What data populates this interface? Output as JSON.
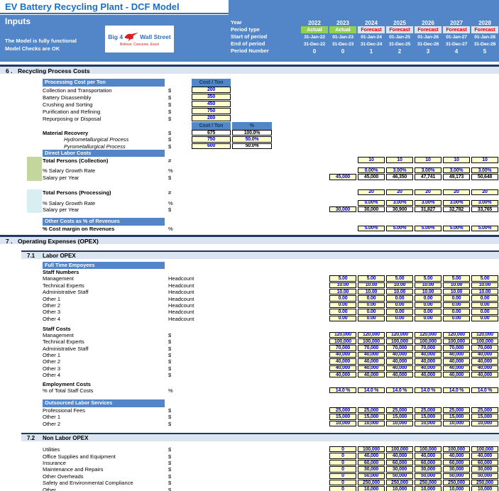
{
  "title": "EV Battery Recycling Plant - DCF Model",
  "sheet": "Inputs",
  "status_line1": "The Model is fully functional",
  "status_line2": "Model Checks are OK",
  "logo": {
    "left": "Big 4",
    "right": "Wall Street",
    "tagline": "Believe, Conceive, Excel"
  },
  "colors": {
    "accent_blue": "#5286c9",
    "section_band": "#dbe5f1",
    "navy_border": "#1f3864",
    "input_cell_bg": "#ffffcc",
    "input_cell_text": "#0000cc",
    "actual_green": "#92d050",
    "forecast_red": "#ee0000"
  },
  "period_header": {
    "labels": [
      "Year",
      "Period type",
      "Start of period",
      "End of period",
      "Period Number"
    ],
    "years": [
      "2022",
      "2023",
      "2024",
      "2025",
      "2026",
      "2027",
      "2028"
    ],
    "period_type": [
      "Actual",
      "Actual",
      "Forecast",
      "Forecast",
      "Forecast",
      "Forecast",
      "Forecast"
    ],
    "start_of_period": [
      "31-Jan-22",
      "01-Jan-23",
      "01-Jan-24",
      "01-Jan-25",
      "01-Jan-26",
      "01-Jan-27",
      "01-Jan-28"
    ],
    "end_of_period": [
      "31-Dec-22",
      "31-Dec-23",
      "31-Dec-24",
      "31-Dec-25",
      "31-Dec-26",
      "31-Dec-27",
      "31-Dec-28"
    ],
    "period_number": [
      "0",
      "0",
      "1",
      "2",
      "3",
      "4",
      "5"
    ]
  },
  "body": [
    {
      "t": "sec",
      "num": "6 .",
      "title": "Recycling Process Costs"
    },
    {
      "t": "gap",
      "h": 7
    },
    {
      "t": "bar",
      "h": 11,
      "label": "Processing Cost per Ton",
      "heads": [
        {
          "v": "Cost / Ton",
          "c": "A"
        }
      ]
    },
    {
      "t": "row",
      "h": 10,
      "label": "Collection and Transportation",
      "unit": "$",
      "cells": [
        {
          "v": "200",
          "y": 1,
          "c": "A"
        }
      ]
    },
    {
      "t": "row",
      "h": 10,
      "label": "Battery Disassembly",
      "unit": "$",
      "cells": [
        {
          "v": "350",
          "y": 1,
          "c": "A"
        }
      ]
    },
    {
      "t": "row",
      "h": 10,
      "label": "Crushing and Sorting",
      "unit": "$",
      "cells": [
        {
          "v": "450",
          "y": 1,
          "c": "A"
        }
      ]
    },
    {
      "t": "row",
      "h": 10,
      "label": "Purification and Refining",
      "unit": "$",
      "cells": [
        {
          "v": "750",
          "y": 1,
          "c": "A"
        }
      ]
    },
    {
      "t": "row",
      "h": 10,
      "label": "Repurposing or Disposal",
      "unit": "$",
      "cells": [
        {
          "v": "200",
          "y": 1,
          "c": "A"
        }
      ]
    },
    {
      "t": "bar",
      "h": 11,
      "heads": [
        {
          "v": "Cost / Ton",
          "c": "A"
        },
        {
          "v": "%",
          "c": "B"
        }
      ]
    },
    {
      "t": "row",
      "h": 9.3,
      "label": "Material Recovery",
      "b": 1,
      "unit": "$",
      "cells": [
        {
          "v": "675",
          "c": "A"
        },
        {
          "v": "100.0%",
          "c": "B"
        }
      ]
    },
    {
      "t": "row",
      "h": 9.3,
      "label": "Hydrometallurgical Process",
      "i": 1,
      "ind": 1,
      "unit": "$",
      "cells": [
        {
          "v": "750",
          "y": 1,
          "c": "A"
        },
        {
          "v": "50.0%",
          "y": 1,
          "c": "B"
        }
      ]
    },
    {
      "t": "row",
      "h": 9.3,
      "label": "Pyrometallurgical Process",
      "i": 1,
      "ind": 1,
      "unit": "$",
      "cells": [
        {
          "v": "600",
          "y": 1,
          "c": "A"
        },
        {
          "v": "50.0%",
          "c": "B"
        }
      ]
    },
    {
      "t": "bar",
      "h": 10.5,
      "label": "Direct Labor Costs"
    },
    {
      "t": "row",
      "h": 9.3,
      "label": "Total Persons (Collection)",
      "b": 1,
      "unit": "#",
      "sw": "g",
      "start": 2,
      "y": 1,
      "vals": [
        "10",
        "10",
        "10",
        "10",
        "10"
      ]
    },
    {
      "t": "gap",
      "h": 5.5,
      "sw": "g"
    },
    {
      "t": "row",
      "h": 9.3,
      "label": "% Salary Growth Rate",
      "unit": "%",
      "sw": "g",
      "start": 2,
      "y": 1,
      "vals": [
        "0.00%",
        "3.00%",
        "3.00%",
        "3.00%",
        "3.00%"
      ]
    },
    {
      "t": "row",
      "h": 9.3,
      "label": "Salary per Year",
      "unit": "$",
      "sw": "g",
      "cells": [
        {
          "v": "45,000",
          "y": 1,
          "col": 1
        },
        {
          "v": "45,000",
          "col": 2
        },
        {
          "v": "46,350",
          "col": 3
        },
        {
          "v": "47,741",
          "col": 4
        },
        {
          "v": "49,173",
          "col": 5
        },
        {
          "v": "50,648",
          "col": 6
        }
      ]
    },
    {
      "t": "gap",
      "h": 12
    },
    {
      "t": "row",
      "h": 9.3,
      "label": "Total Persons (Processing)",
      "b": 1,
      "unit": "#",
      "sw": "b",
      "start": 2,
      "y": 1,
      "vals": [
        "20",
        "20",
        "20",
        "20",
        "20"
      ]
    },
    {
      "t": "gap",
      "h": 5.5,
      "sw": "b"
    },
    {
      "t": "row",
      "h": 9.3,
      "label": "% Salary Growth Rate",
      "unit": "%",
      "sw": "b",
      "start": 2,
      "y": 1,
      "vals": [
        "0.00%",
        "3.00%",
        "3.00%",
        "3.00%",
        "3.00%"
      ]
    },
    {
      "t": "row",
      "h": 9.3,
      "label": "Salary per Year",
      "unit": "$",
      "sw": "b",
      "cells": [
        {
          "v": "30,000",
          "y": 1,
          "col": 1
        },
        {
          "v": "30,000",
          "col": 2
        },
        {
          "v": "30,900",
          "col": 3
        },
        {
          "v": "31,827",
          "col": 4
        },
        {
          "v": "32,782",
          "col": 5
        },
        {
          "v": "33,765",
          "col": 6
        }
      ]
    },
    {
      "t": "gap",
      "h": 7
    },
    {
      "t": "bar",
      "h": 10.5,
      "label": "Other Costs as % of Revenues"
    },
    {
      "t": "row",
      "h": 9.3,
      "label": "% Cost margin on Revenues",
      "b": 1,
      "unit": "%",
      "start": 2,
      "y": 1,
      "vals": [
        "5.00%",
        "5.00%",
        "5.00%",
        "5.00%",
        "5.00%"
      ]
    },
    {
      "t": "gap",
      "h": 4
    },
    {
      "t": "sec",
      "num": "7 .",
      "title": "Operating Expenses (OPEX)"
    },
    {
      "t": "gap",
      "h": 9
    },
    {
      "t": "sub",
      "num": "7.1",
      "title": "Labor OPEX"
    },
    {
      "t": "gap",
      "h": 4
    },
    {
      "t": "bar",
      "h": 10.5,
      "label": "Full Time Empoyees"
    },
    {
      "t": "lbl",
      "h": 8.7,
      "label": "Staff Numbers"
    },
    {
      "t": "row",
      "h": 9.4,
      "label": "Management",
      "unit": "Headcount",
      "start": 1,
      "y": 1,
      "vals": [
        "5.00",
        "5.00",
        "5.00",
        "5.00",
        "5.00",
        "5.00"
      ]
    },
    {
      "t": "row",
      "h": 9.4,
      "label": "Technical Experts",
      "unit": "Headcount",
      "start": 1,
      "y": 1,
      "vals": [
        "10.00",
        "10.00",
        "10.00",
        "10.00",
        "10.00",
        "10.00"
      ]
    },
    {
      "t": "row",
      "h": 9.4,
      "label": "Administrative Staff",
      "unit": "Headcount",
      "start": 1,
      "y": 1,
      "vals": [
        "10.00",
        "10.00",
        "10.00",
        "10.00",
        "10.00",
        "10.00"
      ]
    },
    {
      "t": "row",
      "h": 9.4,
      "label": "Other 1",
      "unit": "Headcount",
      "start": 1,
      "y": 1,
      "vals": [
        "0.00",
        "0.00",
        "0.00",
        "0.00",
        "0.00",
        "0.00"
      ]
    },
    {
      "t": "row",
      "h": 9.4,
      "label": "Other 2",
      "unit": "Headcount",
      "start": 1,
      "y": 1,
      "vals": [
        "0.00",
        "0.00",
        "0.00",
        "0.00",
        "0.00",
        "0.00"
      ]
    },
    {
      "t": "row",
      "h": 9.4,
      "label": "Other 3",
      "unit": "Headcount",
      "start": 1,
      "y": 1,
      "vals": [
        "0.00",
        "0.00",
        "0.00",
        "0.00",
        "0.00",
        "0.00"
      ]
    },
    {
      "t": "row",
      "h": 9.4,
      "label": "Other 4",
      "unit": "Headcount",
      "start": 1,
      "y": 1,
      "vals": [
        "0.00",
        "0.00",
        "0.00",
        "0.00",
        "0.00",
        "0.00"
      ]
    },
    {
      "t": "gap",
      "h": 5
    },
    {
      "t": "lbl",
      "h": 8.7,
      "label": "Staff Costs"
    },
    {
      "t": "row",
      "h": 9.4,
      "label": "Management",
      "unit": "$",
      "start": 1,
      "y": 1,
      "vals": [
        "120,000",
        "120,000",
        "120,000",
        "120,000",
        "120,000",
        "120,000"
      ]
    },
    {
      "t": "row",
      "h": 9.4,
      "label": "Technical Experts",
      "unit": "$",
      "start": 1,
      "y": 1,
      "vals": [
        "100,000",
        "100,000",
        "100,000",
        "100,000",
        "100,000",
        "100,000"
      ]
    },
    {
      "t": "row",
      "h": 9.4,
      "label": "Administrative Staff",
      "unit": "$",
      "start": 1,
      "y": 1,
      "vals": [
        "70,000",
        "70,000",
        "70,000",
        "70,000",
        "70,000",
        "70,000"
      ]
    },
    {
      "t": "row",
      "h": 9.4,
      "label": "Other 1",
      "unit": "$",
      "start": 1,
      "y": 1,
      "vals": [
        "40,000",
        "40,000",
        "40,000",
        "40,000",
        "40,000",
        "40,000"
      ]
    },
    {
      "t": "row",
      "h": 9.4,
      "label": "Other 2",
      "unit": "$",
      "start": 1,
      "y": 1,
      "vals": [
        "40,000",
        "40,000",
        "40,000",
        "40,000",
        "40,000",
        "40,000"
      ]
    },
    {
      "t": "row",
      "h": 9.4,
      "label": "Other 3",
      "unit": "$",
      "start": 1,
      "y": 1,
      "vals": [
        "40,000",
        "40,000",
        "40,000",
        "40,000",
        "40,000",
        "40,000"
      ]
    },
    {
      "t": "row",
      "h": 9.4,
      "label": "Other 4",
      "unit": "$",
      "start": 1,
      "y": 1,
      "vals": [
        "40,000",
        "40,000",
        "40,000",
        "40,000",
        "40,000",
        "40,000"
      ]
    },
    {
      "t": "gap",
      "h": 4
    },
    {
      "t": "lbl",
      "h": 8.7,
      "label": "Employment Costs"
    },
    {
      "t": "row",
      "h": 9.4,
      "label": "% of Total Staff Costs",
      "unit": "%",
      "start": 1,
      "y": 1,
      "vals": [
        "14.0 %",
        "14.0 %",
        "14.0 %",
        "14.0 %",
        "14.0 %",
        "14.0 %"
      ]
    },
    {
      "t": "gap",
      "h": 8
    },
    {
      "t": "bar",
      "h": 10.5,
      "label": "Outsourced Labor Services"
    },
    {
      "t": "row",
      "h": 9.4,
      "label": "Professional Fees",
      "unit": "$",
      "start": 1,
      "y": 1,
      "vals": [
        "25,000",
        "25,000",
        "25,000",
        "25,000",
        "25,000",
        "25,000"
      ]
    },
    {
      "t": "row",
      "h": 9.4,
      "label": "Other 1",
      "unit": "$",
      "start": 1,
      "y": 1,
      "vals": [
        "15,000",
        "15,000",
        "15,000",
        "15,000",
        "15,000",
        "15,000"
      ]
    },
    {
      "t": "row",
      "h": 9.4,
      "label": "Other 2",
      "unit": "$",
      "start": 1,
      "y": 1,
      "vals": [
        "10,000",
        "10,000",
        "10,000",
        "10,000",
        "10,000",
        "10,000"
      ]
    },
    {
      "t": "gap",
      "h": 8
    },
    {
      "t": "sub",
      "num": "7.2",
      "title": "Non Labor OPEX"
    },
    {
      "t": "gap",
      "h": 7
    },
    {
      "t": "row",
      "h": 9.4,
      "label": "Utilities",
      "unit": "$",
      "start": 1,
      "y": 1,
      "vals": [
        "0",
        "100,000",
        "100,000",
        "100,000",
        "100,000",
        "100,000"
      ]
    },
    {
      "t": "row",
      "h": 9.4,
      "label": "Office Supplies and Equipment",
      "unit": "$",
      "start": 1,
      "y": 1,
      "vals": [
        "0",
        "40,000",
        "40,000",
        "40,000",
        "40,000",
        "40,000"
      ]
    },
    {
      "t": "row",
      "h": 9.4,
      "label": "Insurance",
      "unit": "$",
      "start": 1,
      "y": 1,
      "vals": [
        "0",
        "60,000",
        "60,000",
        "60,000",
        "60,000",
        "60,000"
      ]
    },
    {
      "t": "row",
      "h": 9.4,
      "label": "Maintenance and Repairs",
      "unit": "$",
      "start": 1,
      "y": 1,
      "vals": [
        "0",
        "30,000",
        "30,000",
        "30,000",
        "30,000",
        "30,000"
      ]
    },
    {
      "t": "row",
      "h": 9.4,
      "label": "Other Overheads",
      "unit": "$",
      "start": 1,
      "y": 1,
      "vals": [
        "0",
        "50,000",
        "50,000",
        "50,000",
        "50,000",
        "50,000"
      ]
    },
    {
      "t": "row",
      "h": 9.4,
      "label": "Safety and Environmental Compliance",
      "unit": "$",
      "start": 1,
      "y": 1,
      "vals": [
        "0",
        "250,000",
        "250,000",
        "250,000",
        "250,000",
        "250,000"
      ]
    },
    {
      "t": "row",
      "h": 9.4,
      "label": "Other",
      "unit": "$",
      "start": 1,
      "y": 1,
      "vals": [
        "0",
        "10,000",
        "10,000",
        "10,000",
        "10,000",
        "10,000"
      ]
    }
  ]
}
